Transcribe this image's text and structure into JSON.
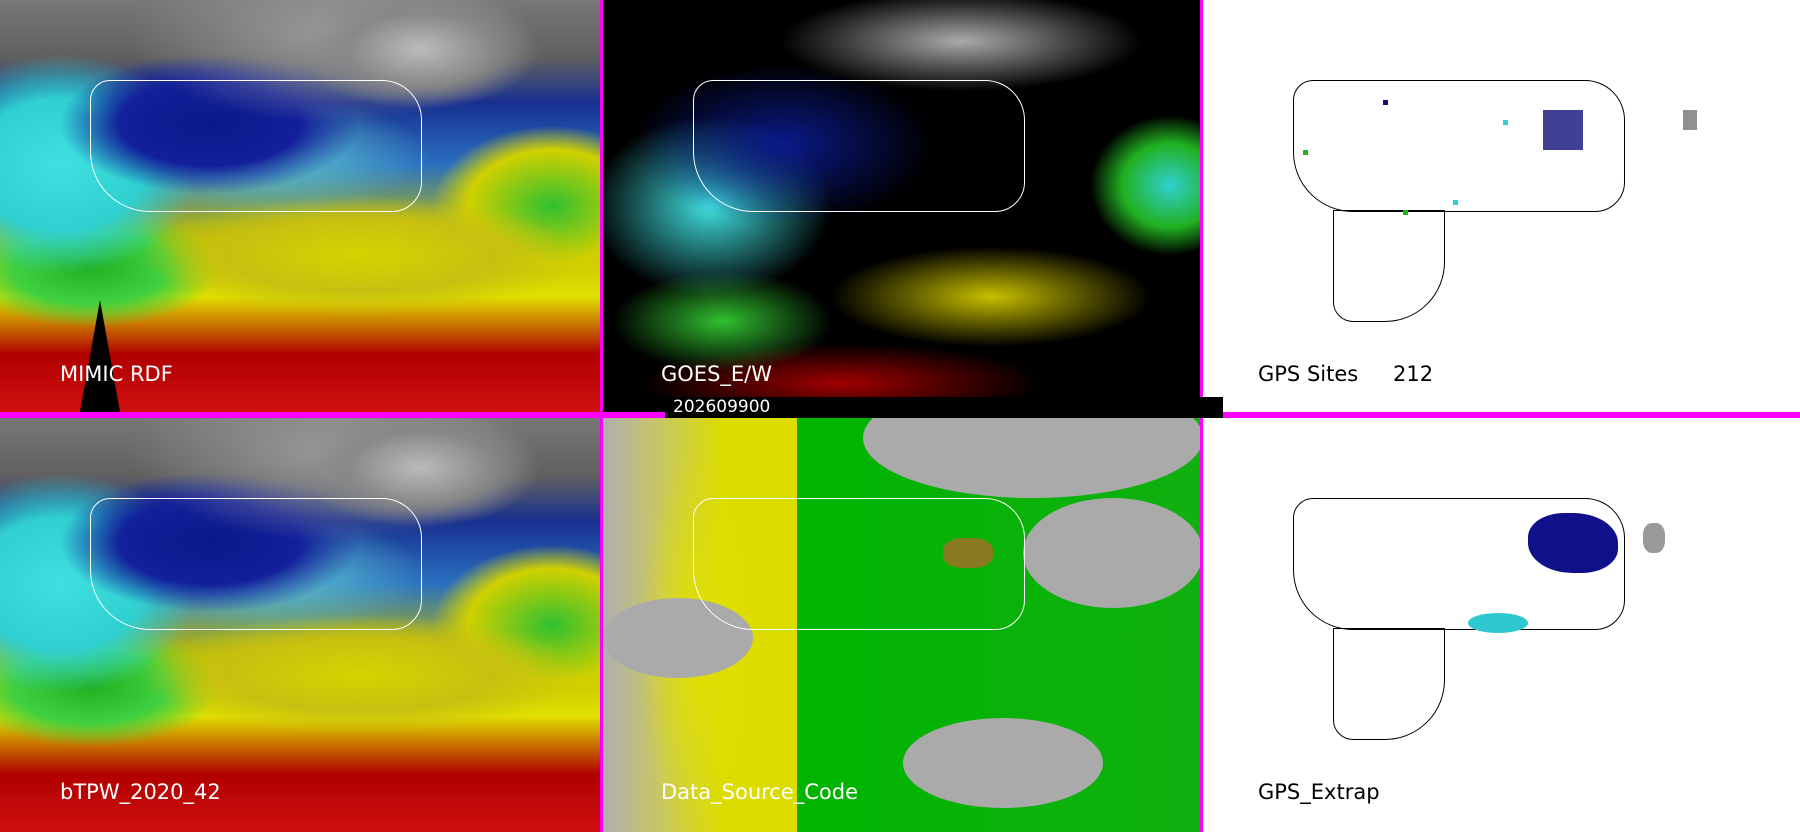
{
  "panels": [
    {
      "id": "mimic",
      "label": "MIMIC RDF"
    },
    {
      "id": "goes",
      "label": "GOES_E/W"
    },
    {
      "id": "gps_sites",
      "label": "GPS Sites",
      "count": "212"
    },
    {
      "id": "btpw",
      "label": "bTPW_2020_42"
    },
    {
      "id": "dsc",
      "label": "Data_Source_Code"
    },
    {
      "id": "gps_extrap",
      "label": "GPS_Extrap"
    }
  ],
  "date_bar": {
    "text": "202609900"
  },
  "colors": {
    "separator": "#ff00ff",
    "gps_site_dark": "#10107a",
    "gps_site_cyan": "#30d0d0",
    "gps_site_green": "#20b020",
    "gps_site_gray": "#909090"
  }
}
